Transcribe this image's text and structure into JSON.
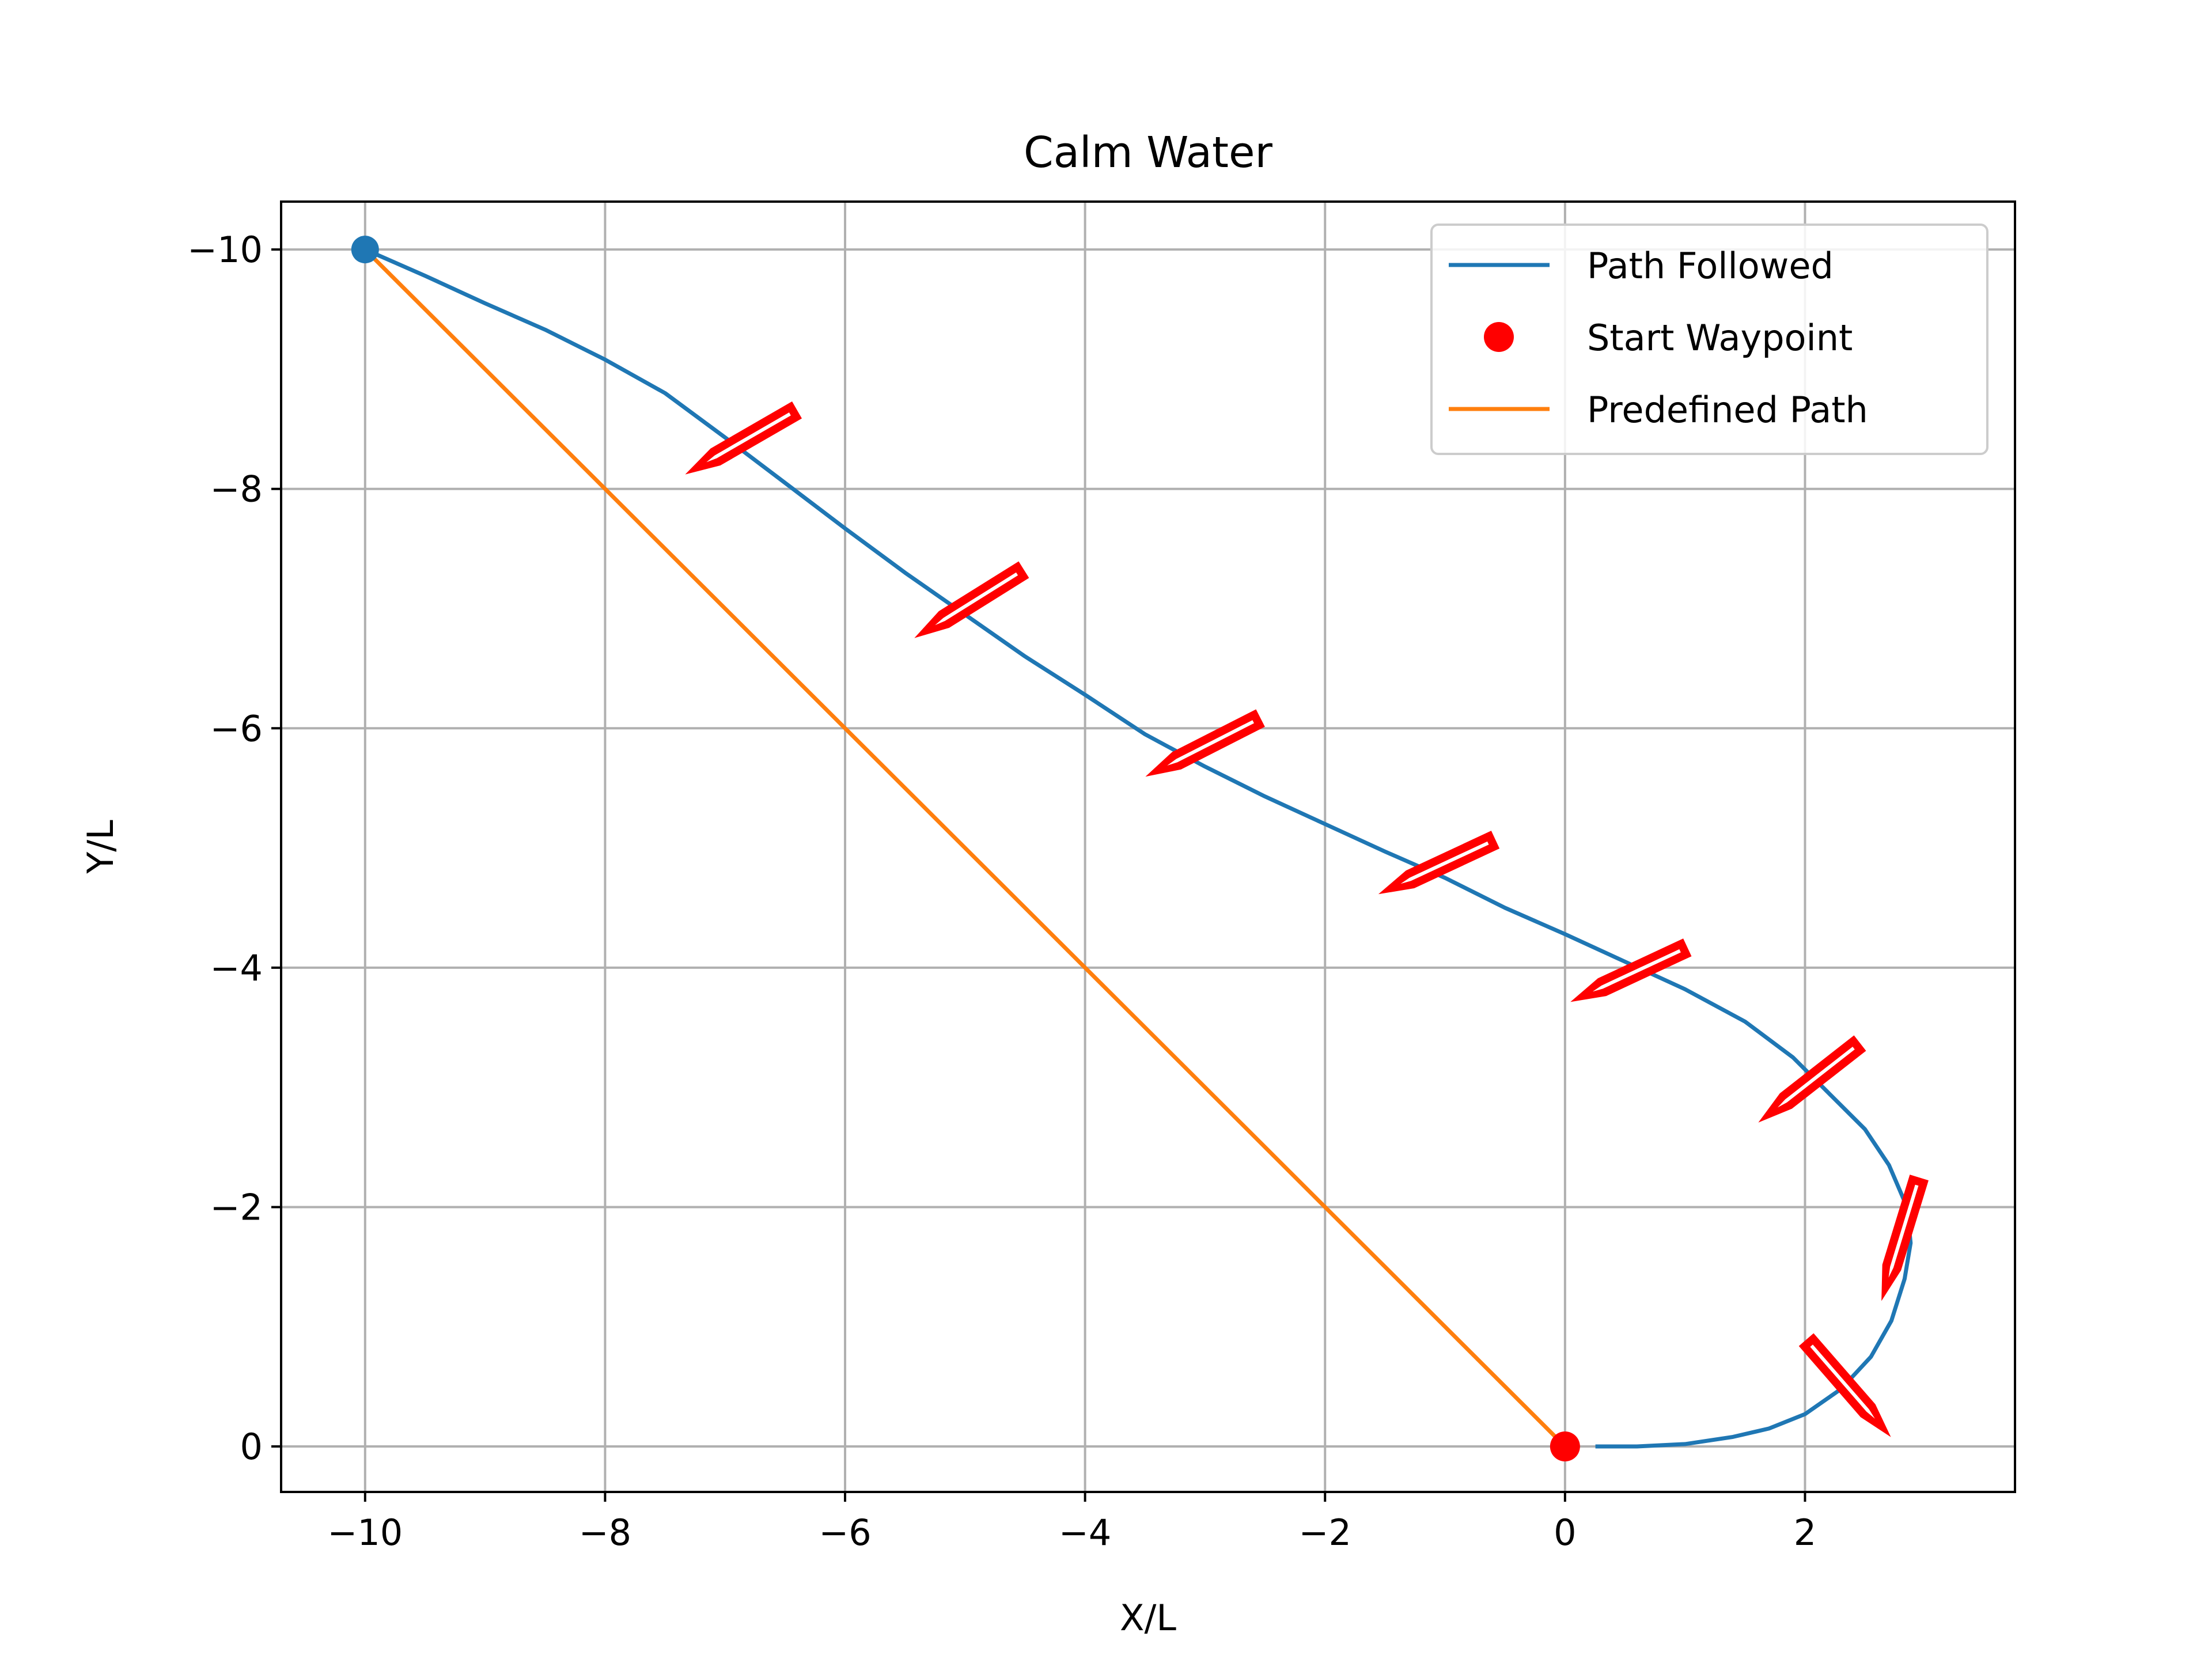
{
  "chart_data": {
    "type": "line",
    "title": "Calm Water",
    "xlabel": "X/L",
    "ylabel": "Y/L",
    "xlim": [
      -10.7,
      3.75
    ],
    "ylim": [
      0.38,
      -10.4
    ],
    "y_inverted": true,
    "grid": true,
    "legend_position": "top-right",
    "x_ticks": [
      -10,
      -8,
      -6,
      -4,
      -2,
      0,
      2
    ],
    "y_ticks": [
      -10,
      -8,
      -6,
      -4,
      -2,
      0
    ],
    "x_tick_labels": [
      "−10",
      "−8",
      "−6",
      "−4",
      "−2",
      "0",
      "2"
    ],
    "y_tick_labels": [
      "−10",
      "−8",
      "−6",
      "−4",
      "−2",
      "0"
    ],
    "legend": [
      {
        "label": "Path Followed",
        "kind": "line",
        "color": "#1f77b4"
      },
      {
        "label": "Start Waypoint",
        "kind": "marker",
        "color": "#ff0000"
      },
      {
        "label": "Predefined Path",
        "kind": "line",
        "color": "#ff7f0e"
      }
    ],
    "series": [
      {
        "name": "Path Followed",
        "color": "#1f77b4",
        "points": [
          [
            0.27,
            0.0
          ],
          [
            0.6,
            0.0
          ],
          [
            1.0,
            -0.02
          ],
          [
            1.4,
            -0.08
          ],
          [
            1.7,
            -0.15
          ],
          [
            2.0,
            -0.27
          ],
          [
            2.3,
            -0.48
          ],
          [
            2.55,
            -0.75
          ],
          [
            2.72,
            -1.05
          ],
          [
            2.83,
            -1.4
          ],
          [
            2.88,
            -1.7
          ],
          [
            2.85,
            -2.0
          ],
          [
            2.7,
            -2.35
          ],
          [
            2.5,
            -2.65
          ],
          [
            2.2,
            -2.95
          ],
          [
            1.9,
            -3.25
          ],
          [
            1.5,
            -3.55
          ],
          [
            1.0,
            -3.82
          ],
          [
            0.5,
            -4.05
          ],
          [
            0.0,
            -4.28
          ],
          [
            -0.5,
            -4.5
          ],
          [
            -1.0,
            -4.75
          ],
          [
            -1.5,
            -4.97
          ],
          [
            -2.0,
            -5.2
          ],
          [
            -2.5,
            -5.43
          ],
          [
            -3.0,
            -5.68
          ],
          [
            -3.5,
            -5.95
          ],
          [
            -4.0,
            -6.28
          ],
          [
            -4.5,
            -6.6
          ],
          [
            -5.0,
            -6.95
          ],
          [
            -5.5,
            -7.3
          ],
          [
            -6.0,
            -7.67
          ],
          [
            -6.5,
            -8.05
          ],
          [
            -7.0,
            -8.43
          ],
          [
            -7.5,
            -8.8
          ],
          [
            -8.0,
            -9.08
          ],
          [
            -8.5,
            -9.33
          ],
          [
            -9.0,
            -9.55
          ],
          [
            -9.5,
            -9.78
          ],
          [
            -10.0,
            -10.0
          ]
        ]
      },
      {
        "name": "Predefined Path",
        "color": "#ff7f0e",
        "points": [
          [
            -10,
            -10
          ],
          [
            0,
            0
          ]
        ]
      }
    ],
    "start_waypoint": {
      "x": 0,
      "y": 0,
      "color": "#ff0000"
    },
    "end_marker": {
      "x": -10,
      "y": -10,
      "color": "#1f77b4"
    },
    "vessel_color": "#ff0000",
    "vessels": [
      {
        "x": -6.85,
        "y": -8.4,
        "heading_deg": 150
      },
      {
        "x": -4.95,
        "y": -7.05,
        "heading_deg": 148
      },
      {
        "x": -3.0,
        "y": -5.85,
        "heading_deg": 153
      },
      {
        "x": -1.05,
        "y": -4.85,
        "heading_deg": 155
      },
      {
        "x": 0.55,
        "y": -3.95,
        "heading_deg": 155
      },
      {
        "x": 2.05,
        "y": -3.05,
        "heading_deg": 142
      },
      {
        "x": 2.8,
        "y": -1.75,
        "heading_deg": 107
      },
      {
        "x": 2.35,
        "y": -0.5,
        "heading_deg": 49
      }
    ]
  }
}
